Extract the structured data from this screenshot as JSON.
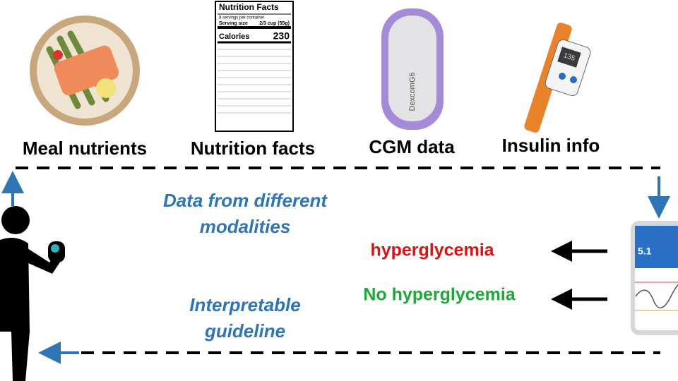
{
  "labels": [
    "Meal nutrients",
    "Nutrition facts",
    "CGM data",
    "Insulin info"
  ],
  "flow": {
    "top_text": [
      "Data from different",
      "modalities"
    ],
    "bottom_text": [
      "Interpretable",
      "guideline"
    ]
  },
  "outcomes": [
    "hyperglycemia",
    "No hyperglycemia"
  ],
  "nutrition_label": {
    "title": "Nutrition Facts",
    "servings": "8 servings per container",
    "serving_size": "Serving size",
    "serving_amount": "2/3 cup (55g)",
    "calories": "Calories",
    "calories_value": "230"
  },
  "cgm_device": {
    "brand": "DexcomG6"
  },
  "insulin_pen": {
    "display": "135"
  },
  "phone": {
    "reading": "5.1"
  }
}
